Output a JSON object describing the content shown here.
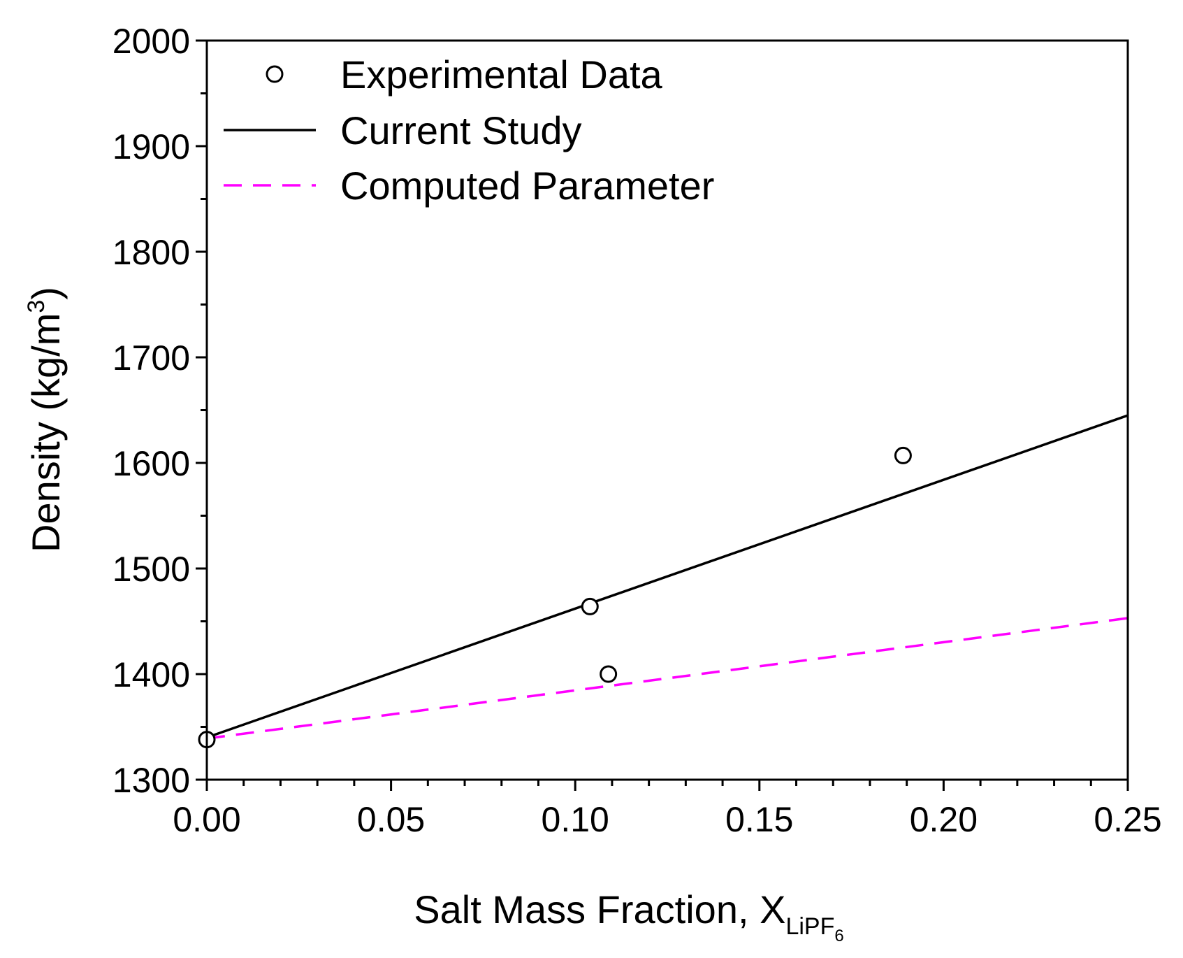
{
  "chart_data": {
    "type": "scatter",
    "xlabel": "Salt Mass Fraction, X",
    "xlabel_subscript": "LiPF",
    "xlabel_subsubscript": "6",
    "ylabel": "Density (kg/m",
    "ylabel_superscript": "3",
    "ylabel_close": ")",
    "xlim": [
      0,
      0.25
    ],
    "ylim": [
      1300,
      2000
    ],
    "xticks": [
      "0.00",
      "0.05",
      "0.10",
      "0.15",
      "0.20",
      "0.25"
    ],
    "yticks": [
      "1300",
      "1400",
      "1500",
      "1600",
      "1700",
      "1800",
      "1900",
      "2000"
    ],
    "legend_position": "top-left",
    "series": [
      {
        "name": "Experimental Data",
        "kind": "markers",
        "color": "#000000",
        "points": [
          [
            0.0,
            1338
          ],
          [
            0.104,
            1464
          ],
          [
            0.109,
            1400
          ],
          [
            0.189,
            1607
          ]
        ]
      },
      {
        "name": "Current Study",
        "kind": "line",
        "color": "#000000",
        "dash": false,
        "points": [
          [
            0.0,
            1340
          ],
          [
            0.25,
            1645
          ]
        ]
      },
      {
        "name": "Computed Parameter",
        "kind": "line",
        "color": "#ff00ff",
        "dash": true,
        "points": [
          [
            0.0,
            1339
          ],
          [
            0.25,
            1453
          ]
        ]
      }
    ]
  }
}
